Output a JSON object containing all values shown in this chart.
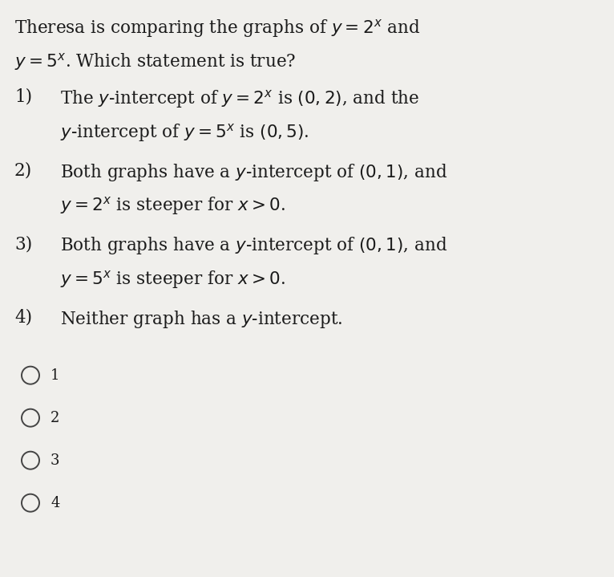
{
  "background_color": "#f0efec",
  "title_line1": "Theresa is comparing the graphs of $y = 2^x$ and",
  "title_line2": "$y = 5^x$. Which statement is true?",
  "options": [
    {
      "number": "1)",
      "line1": "The $y$-intercept of $y = 2^x$ is $(0,2)$, and the",
      "line2": "$y$-intercept of $y = 5^x$ is $(0,5)$."
    },
    {
      "number": "2)",
      "line1": "Both graphs have a $y$-intercept of $(0,1)$, and",
      "line2": "$y = 2^x$ is steeper for $x > 0$."
    },
    {
      "number": "3)",
      "line1": "Both graphs have a $y$-intercept of $(0,1)$, and",
      "line2": "$y = 5^x$ is steeper for $x > 0$."
    },
    {
      "number": "4)",
      "line1": "Neither graph has a $y$-intercept.",
      "line2": null
    }
  ],
  "radio_labels": [
    "1",
    "2",
    "3",
    "4"
  ],
  "text_color": "#1a1a1a",
  "radio_color": "#444444",
  "font_size_main": 15.5,
  "font_size_radio": 13
}
